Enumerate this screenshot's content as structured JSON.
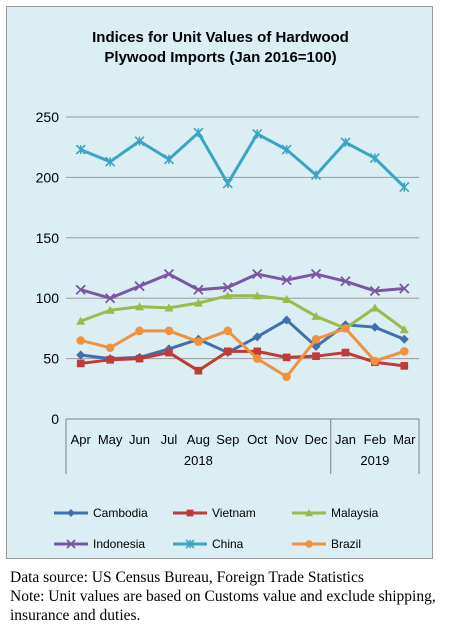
{
  "chart_data": {
    "type": "line",
    "title_lines": [
      "Indices for Unit Values of Hardwood",
      "Plywood Imports (Jan 2016=100)"
    ],
    "categories": [
      "Apr",
      "May",
      "Jun",
      "Jul",
      "Aug",
      "Sep",
      "Oct",
      "Nov",
      "Dec",
      "Jan",
      "Feb",
      "Mar"
    ],
    "year_groups": [
      {
        "label": "2018",
        "start": 0,
        "end": 8
      },
      {
        "label": "2019",
        "start": 9,
        "end": 11
      }
    ],
    "y_ticks": [
      0,
      50,
      100,
      150,
      200,
      250
    ],
    "ylim": [
      0,
      250
    ],
    "grid": true,
    "legend_position": "bottom",
    "series": [
      {
        "name": "Cambodia",
        "color": "#3f6fad",
        "marker": "diamond",
        "values": [
          53,
          50,
          51,
          58,
          66,
          55,
          68,
          82,
          60,
          78,
          76,
          66
        ]
      },
      {
        "name": "Vietnam",
        "color": "#be3b38",
        "marker": "square",
        "values": [
          46,
          49,
          50,
          55,
          40,
          56,
          56,
          51,
          52,
          55,
          47,
          44
        ]
      },
      {
        "name": "Malaysia",
        "color": "#98bb4a",
        "marker": "triangle",
        "values": [
          81,
          90,
          93,
          92,
          96,
          102,
          102,
          99,
          85,
          75,
          92,
          74
        ]
      },
      {
        "name": "Indonesia",
        "color": "#7a57a0",
        "marker": "x",
        "values": [
          107,
          100,
          110,
          120,
          107,
          109,
          120,
          115,
          120,
          114,
          106,
          108
        ]
      },
      {
        "name": "China",
        "color": "#3ca4c0",
        "marker": "star",
        "values": [
          223,
          213,
          230,
          215,
          237,
          195,
          236,
          223,
          202,
          229,
          216,
          192
        ]
      },
      {
        "name": "Brazil",
        "color": "#f0913c",
        "marker": "circle",
        "values": [
          65,
          59,
          73,
          73,
          64,
          73,
          50,
          35,
          66,
          75,
          48,
          56
        ]
      }
    ]
  },
  "notes": {
    "source": "Data source: US Census Bureau, Foreign Trade Statistics",
    "note": "Note: Unit values are based on Customs value and exclude shipping, insurance and duties."
  }
}
